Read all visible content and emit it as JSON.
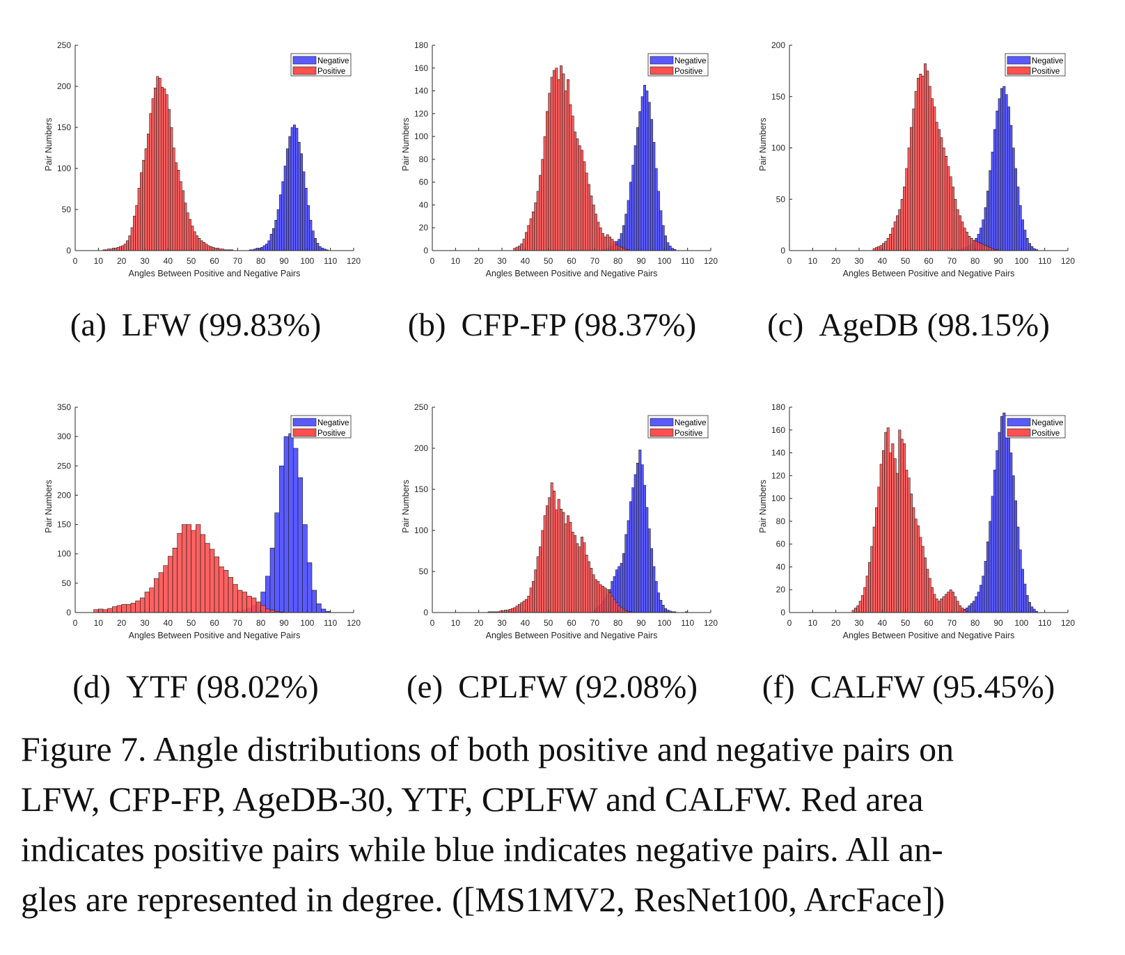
{
  "colors": {
    "negative": "#5a5aff",
    "positive": "#ff5050",
    "overlap": "#8a1a2a",
    "bar_edge": "#1a1a1a"
  },
  "chart_data": [
    {
      "type": "bar",
      "id": "a",
      "xlabel": "Angles Between Positive and Negative Pairs",
      "ylabel": "Pair Numbers",
      "xlim": [
        0,
        120
      ],
      "ylim": [
        0,
        250
      ],
      "xticks": [
        0,
        10,
        20,
        30,
        40,
        50,
        60,
        70,
        80,
        90,
        100,
        110,
        120
      ],
      "yticks": [
        0,
        50,
        100,
        150,
        200,
        250
      ],
      "bin_width": 1,
      "legend": {
        "entries": [
          "Negative",
          "Positive"
        ],
        "location": "top-right"
      },
      "series": [
        {
          "name": "Negative",
          "color_key": "negative",
          "start": 70,
          "values": [
            0,
            0,
            0,
            0,
            0,
            1,
            1,
            2,
            3,
            3,
            4,
            6,
            8,
            12,
            20,
            27,
            37,
            50,
            68,
            84,
            103,
            124,
            139,
            150,
            153,
            149,
            132,
            118,
            96,
            76,
            55,
            37,
            24,
            15,
            9,
            5,
            3,
            2,
            1,
            0,
            0
          ]
        },
        {
          "name": "Positive",
          "color_key": "positive",
          "start": 12,
          "values": [
            1,
            1,
            2,
            2,
            3,
            3,
            4,
            5,
            6,
            8,
            12,
            18,
            28,
            42,
            55,
            76,
            95,
            110,
            124,
            142,
            167,
            185,
            198,
            212,
            210,
            199,
            197,
            190,
            172,
            150,
            125,
            107,
            98,
            84,
            73,
            58,
            46,
            38,
            30,
            23,
            18,
            15,
            12,
            10,
            8,
            6,
            5,
            4,
            3,
            3,
            2,
            2,
            1,
            1,
            1,
            1,
            0,
            0,
            0,
            0,
            0,
            0,
            0,
            0,
            0,
            0,
            0,
            0,
            0,
            0,
            0
          ]
        }
      ]
    },
    {
      "type": "bar",
      "id": "b",
      "xlabel": "Angles Between Positive and Negative Pairs",
      "ylabel": "Pair Numbers",
      "xlim": [
        0,
        120
      ],
      "ylim": [
        0,
        180
      ],
      "xticks": [
        0,
        10,
        20,
        30,
        40,
        50,
        60,
        70,
        80,
        90,
        100,
        110,
        120
      ],
      "yticks": [
        0,
        20,
        40,
        60,
        80,
        100,
        120,
        140,
        160,
        180
      ],
      "bin_width": 1,
      "legend": {
        "entries": [
          "Negative",
          "Positive"
        ],
        "location": "top-right"
      },
      "series": [
        {
          "name": "Negative",
          "color_key": "negative",
          "start": 72,
          "values": [
            0,
            1,
            1,
            2,
            3,
            4,
            6,
            8,
            10,
            15,
            22,
            32,
            44,
            60,
            75,
            92,
            108,
            122,
            135,
            145,
            140,
            130,
            115,
            95,
            72,
            52,
            35,
            22,
            13,
            7,
            4,
            2,
            1,
            0
          ]
        },
        {
          "name": "Positive",
          "color_key": "positive",
          "start": 35,
          "values": [
            2,
            3,
            4,
            6,
            10,
            16,
            22,
            28,
            34,
            42,
            52,
            66,
            80,
            100,
            122,
            138,
            152,
            158,
            160,
            150,
            162,
            155,
            140,
            150,
            128,
            118,
            104,
            98,
            92,
            88,
            78,
            68,
            58,
            48,
            40,
            32,
            25,
            20,
            15,
            12,
            14,
            12,
            10,
            8,
            5,
            4,
            3,
            2,
            1,
            1,
            0
          ]
        }
      ]
    },
    {
      "type": "bar",
      "id": "c",
      "xlabel": "Angles Between Positive and Negative Pairs",
      "ylabel": "Pair Numbers",
      "xlim": [
        0,
        120
      ],
      "ylim": [
        0,
        200
      ],
      "xticks": [
        0,
        10,
        20,
        30,
        40,
        50,
        60,
        70,
        80,
        90,
        100,
        110,
        120
      ],
      "yticks": [
        0,
        50,
        100,
        150,
        200
      ],
      "bin_width": 1,
      "legend": {
        "entries": [
          "Negative",
          "Positive"
        ],
        "location": "top-right"
      },
      "series": [
        {
          "name": "Negative",
          "color_key": "negative",
          "start": 72,
          "values": [
            1,
            1,
            2,
            3,
            4,
            5,
            7,
            9,
            12,
            16,
            22,
            30,
            42,
            58,
            78,
            96,
            118,
            136,
            148,
            158,
            160,
            152,
            140,
            122,
            100,
            80,
            62,
            44,
            30,
            20,
            12,
            7,
            4,
            2,
            1,
            0
          ]
        },
        {
          "name": "Positive",
          "color_key": "positive",
          "start": 36,
          "values": [
            2,
            3,
            4,
            5,
            7,
            9,
            12,
            16,
            22,
            28,
            34,
            40,
            50,
            62,
            80,
            100,
            120,
            138,
            155,
            168,
            172,
            170,
            182,
            175,
            160,
            148,
            140,
            125,
            118,
            110,
            100,
            92,
            82,
            72,
            62,
            50,
            40,
            34,
            28,
            22,
            18,
            14,
            12,
            10,
            9,
            8,
            7,
            6,
            5,
            4,
            3,
            2,
            1,
            1,
            0
          ]
        }
      ]
    },
    {
      "type": "bar",
      "id": "d",
      "xlabel": "Angles Between Positive and Negative Pairs",
      "ylabel": "Pair Numbers",
      "xlim": [
        0,
        120
      ],
      "ylim": [
        0,
        350
      ],
      "xticks": [
        0,
        10,
        20,
        30,
        40,
        50,
        60,
        70,
        80,
        90,
        100,
        110,
        120
      ],
      "yticks": [
        0,
        50,
        100,
        150,
        200,
        250,
        300,
        350
      ],
      "bin_width": 2,
      "legend": {
        "entries": [
          "Negative",
          "Positive"
        ],
        "location": "top-right"
      },
      "series": [
        {
          "name": "Negative",
          "color_key": "negative",
          "start": 70,
          "values": [
            2,
            5,
            8,
            12,
            18,
            35,
            62,
            110,
            170,
            250,
            300,
            305,
            280,
            230,
            150,
            85,
            38,
            15,
            6,
            2
          ]
        },
        {
          "name": "Positive",
          "color_key": "positive",
          "start": 8,
          "values": [
            5,
            6,
            5,
            7,
            10,
            12,
            14,
            14,
            16,
            20,
            25,
            35,
            42,
            58,
            68,
            80,
            96,
            110,
            135,
            150,
            150,
            140,
            150,
            133,
            118,
            108,
            95,
            78,
            72,
            60,
            48,
            38,
            35,
            28,
            25,
            18,
            12,
            6,
            4,
            2,
            1
          ]
        }
      ]
    },
    {
      "type": "bar",
      "id": "e",
      "xlabel": "Angles Between Positive and Negative Pairs",
      "ylabel": "Pair Numbers",
      "xlim": [
        0,
        120
      ],
      "ylim": [
        0,
        250
      ],
      "xticks": [
        0,
        10,
        20,
        30,
        40,
        50,
        60,
        70,
        80,
        90,
        100,
        110,
        120
      ],
      "yticks": [
        0,
        50,
        100,
        150,
        200,
        250
      ],
      "bin_width": 1,
      "legend": {
        "entries": [
          "Negative",
          "Positive"
        ],
        "location": "top-right"
      },
      "series": [
        {
          "name": "Negative",
          "color_key": "negative",
          "start": 70,
          "values": [
            5,
            8,
            10,
            14,
            18,
            22,
            28,
            38,
            44,
            52,
            56,
            60,
            72,
            95,
            112,
            135,
            152,
            168,
            182,
            198,
            180,
            155,
            128,
            102,
            78,
            56,
            38,
            24,
            15,
            9,
            5,
            3,
            2,
            1,
            1,
            0,
            0,
            0,
            0,
            1,
            0
          ]
        },
        {
          "name": "Positive",
          "color_key": "positive",
          "start": 24,
          "values": [
            1,
            1,
            1,
            1,
            1,
            2,
            2,
            3,
            3,
            4,
            5,
            6,
            8,
            10,
            12,
            14,
            16,
            20,
            30,
            38,
            52,
            68,
            80,
            100,
            118,
            130,
            140,
            158,
            148,
            125,
            138,
            126,
            122,
            108,
            118,
            110,
            98,
            94,
            84,
            80,
            92,
            85,
            70,
            62,
            54,
            46,
            40,
            38,
            34,
            32,
            30,
            28,
            24,
            20,
            16,
            12,
            8,
            6,
            4,
            2,
            1,
            1
          ]
        }
      ]
    },
    {
      "type": "bar",
      "id": "f",
      "xlabel": "Angles Between Positive and Negative Pairs",
      "ylabel": "Pair Numbers",
      "xlim": [
        0,
        120
      ],
      "ylim": [
        0,
        180
      ],
      "xticks": [
        0,
        10,
        20,
        30,
        40,
        50,
        60,
        70,
        80,
        90,
        100,
        110,
        120
      ],
      "yticks": [
        0,
        20,
        40,
        60,
        80,
        100,
        120,
        140,
        160,
        180
      ],
      "bin_width": 1,
      "legend": {
        "entries": [
          "Negative",
          "Positive"
        ],
        "location": "top-right"
      },
      "series": [
        {
          "name": "Negative",
          "color_key": "negative",
          "start": 72,
          "values": [
            1,
            1,
            2,
            3,
            4,
            6,
            8,
            10,
            14,
            18,
            24,
            32,
            45,
            62,
            80,
            102,
            125,
            142,
            158,
            172,
            175,
            170,
            160,
            140,
            120,
            98,
            75,
            55,
            38,
            25,
            15,
            9,
            5,
            3,
            1,
            0
          ]
        },
        {
          "name": "Positive",
          "color_key": "positive",
          "start": 27,
          "values": [
            2,
            4,
            6,
            10,
            15,
            22,
            32,
            44,
            58,
            75,
            92,
            110,
            130,
            142,
            158,
            162,
            140,
            148,
            135,
            122,
            160,
            152,
            148,
            125,
            118,
            104,
            92,
            82,
            76,
            66,
            58,
            48,
            38,
            30,
            22,
            16,
            12,
            10,
            12,
            14,
            16,
            18,
            20,
            18,
            14,
            10,
            6,
            4,
            2,
            1
          ]
        }
      ]
    }
  ],
  "subcaptions": [
    {
      "label": "(a)",
      "text": "LFW (99.83%)"
    },
    {
      "label": "(b)",
      "text": "CFP-FP (98.37%)"
    },
    {
      "label": "(c)",
      "text": "AgeDB (98.15%)"
    },
    {
      "label": "(d)",
      "text": "YTF (98.02%)"
    },
    {
      "label": "(e)",
      "text": "CPLFW (92.08%)"
    },
    {
      "label": "(f)",
      "text": "CALFW (95.45%)"
    }
  ],
  "caption_lines": [
    "Figure 7. Angle distributions of both positive and negative pairs on",
    "LFW, CFP-FP, AgeDB-30, YTF, CPLFW and CALFW. Red area",
    "indicates positive pairs while blue indicates negative pairs. All an-",
    "gles are represented in degree. ([MS1MV2, ResNet100, ArcFace])"
  ]
}
